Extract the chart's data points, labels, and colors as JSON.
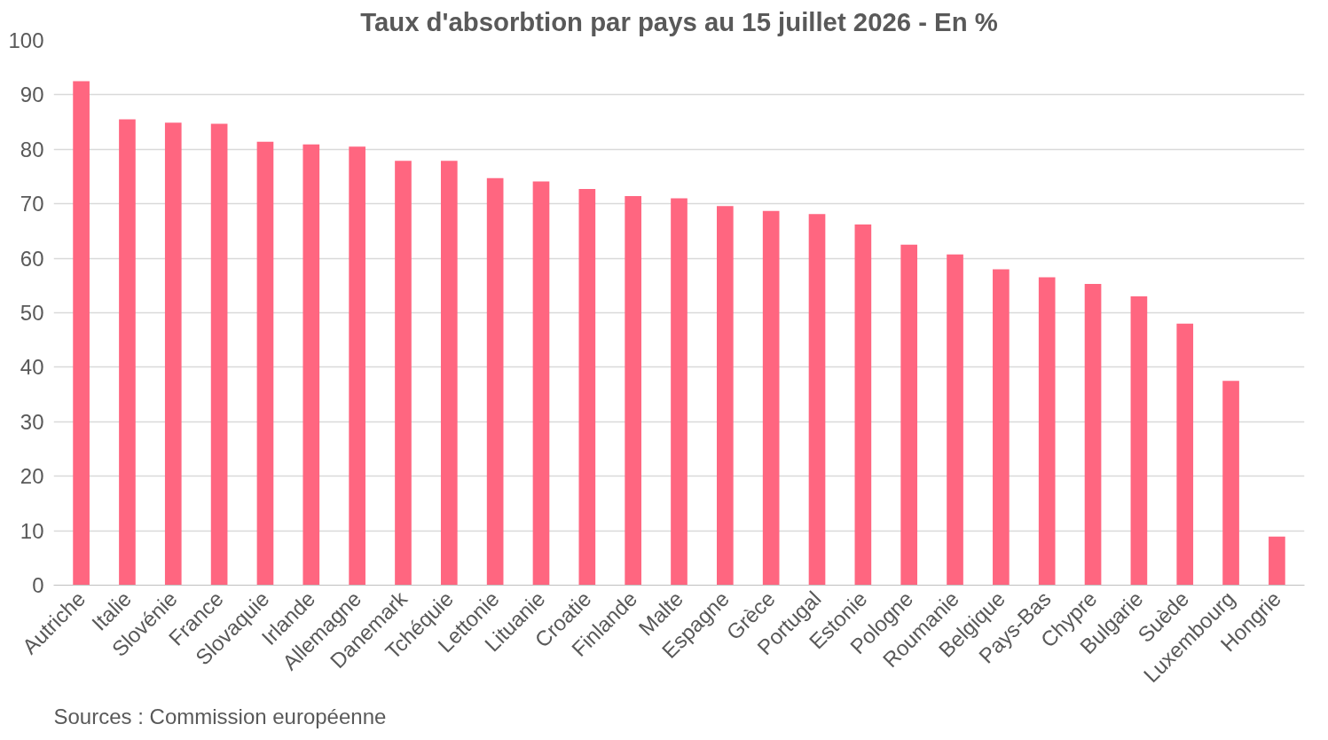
{
  "chart_data": {
    "type": "bar",
    "title": "Taux d'absorbtion par pays au 15 juillet 2026 - En %",
    "categories": [
      "Autriche",
      "Italie",
      "Slovénie",
      "France",
      "Slovaquie",
      "Irlande",
      "Allemagne",
      "Danemark",
      "Tchéquie",
      "Lettonie",
      "Lituanie",
      "Croatie",
      "Finlande",
      "Malte",
      "Espagne",
      "Grèce",
      "Portugal",
      "Estonie",
      "Pologne",
      "Roumanie",
      "Belgique",
      "Pays-Bas",
      "Chypre",
      "Bulgarie",
      "Suède",
      "Luxembourg",
      "Hongrie"
    ],
    "values": [
      92.5,
      85.5,
      84.9,
      84.7,
      81.4,
      80.9,
      80.5,
      77.9,
      77.9,
      74.7,
      74.1,
      72.7,
      71.4,
      71.0,
      69.6,
      68.7,
      68.1,
      66.2,
      62.5,
      60.7,
      58.0,
      56.5,
      55.3,
      53.0,
      48.0,
      37.5,
      8.9
    ],
    "color": "#ff6680",
    "ylim": [
      0,
      100
    ],
    "yticks": [
      0,
      10,
      20,
      30,
      40,
      50,
      60,
      70,
      80,
      90,
      100
    ],
    "grid": "y",
    "annotations": [
      "Sources : Commission européenne"
    ]
  }
}
